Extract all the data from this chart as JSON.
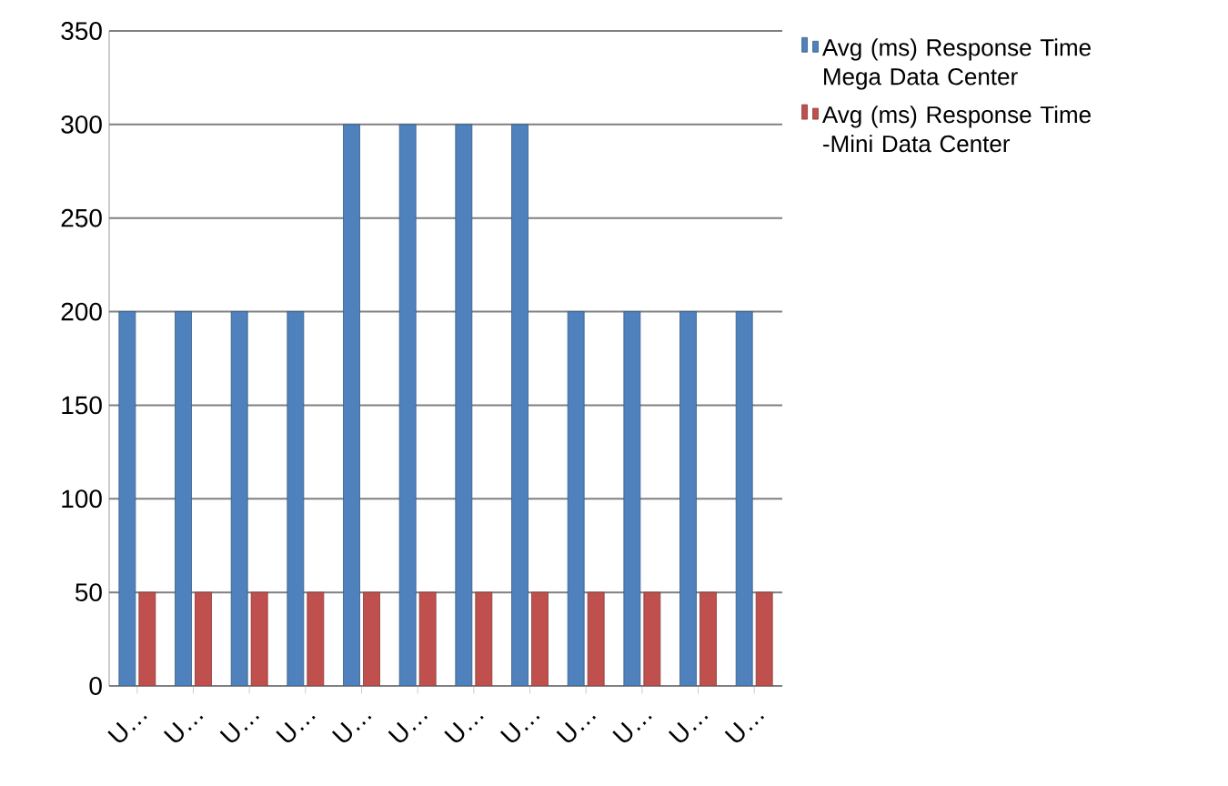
{
  "chart_data": {
    "type": "bar",
    "categories": [
      "U…",
      "U…",
      "U…",
      "U…",
      "U…",
      "U…",
      "U…",
      "U…",
      "U…",
      "U…",
      "U…",
      "U…"
    ],
    "series": [
      {
        "name": "Avg (ms) Response Time Mega Data Center",
        "color": "#4f81bd",
        "values": [
          200,
          200,
          200,
          200,
          300,
          300,
          300,
          300,
          200,
          200,
          200,
          200
        ]
      },
      {
        "name": "Avg (ms) Response Time -Mini Data Center",
        "color": "#c0504d",
        "values": [
          50,
          50,
          50,
          50,
          50,
          50,
          50,
          50,
          50,
          50,
          50,
          50
        ]
      }
    ],
    "ylim": [
      0,
      350
    ],
    "yticks": [
      0,
      50,
      100,
      150,
      200,
      250,
      300,
      350
    ],
    "grid": "y",
    "legend": "top right"
  }
}
